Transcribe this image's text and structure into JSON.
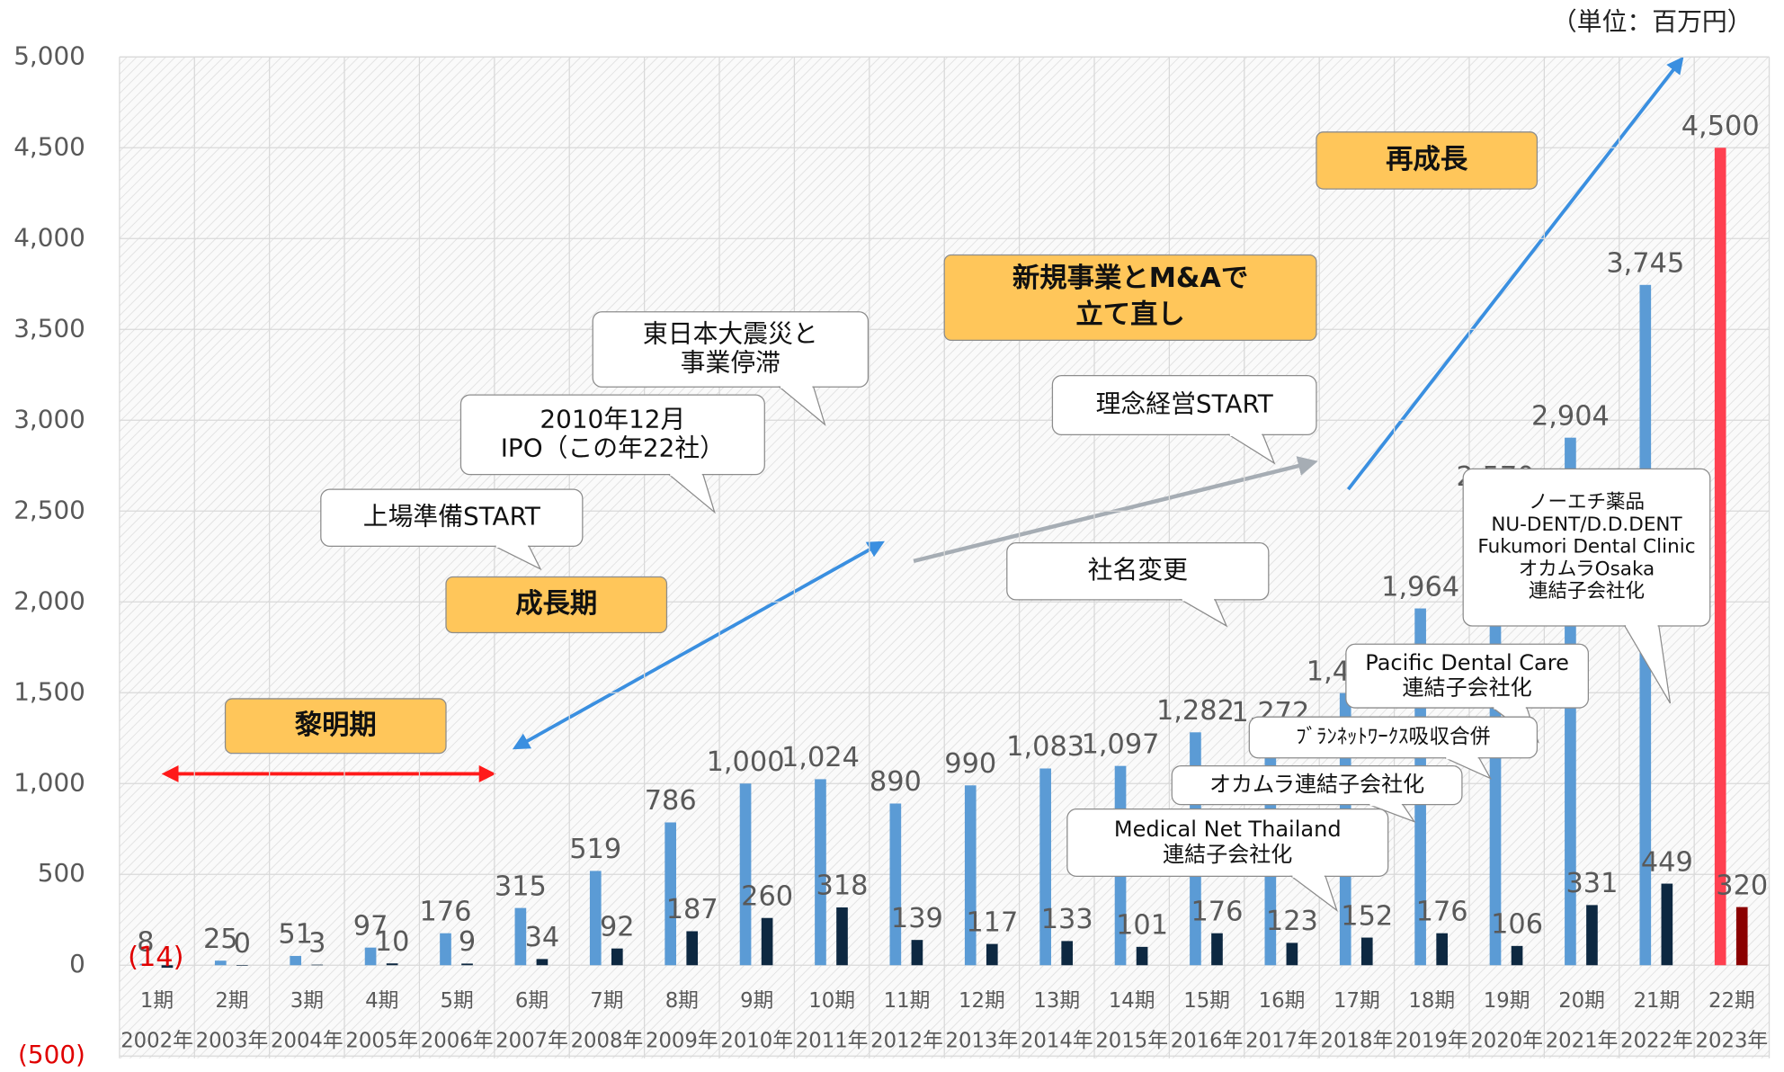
{
  "chart_data": {
    "type": "bar",
    "unit_label": "（単位：百万円）",
    "categories": [
      "1期",
      "2期",
      "3期",
      "4期",
      "5期",
      "6期",
      "7期",
      "8期",
      "9期",
      "10期",
      "11期",
      "12期",
      "13期",
      "14期",
      "15期",
      "16期",
      "17期",
      "18期",
      "19期",
      "20期",
      "21期",
      "22期"
    ],
    "years": [
      "2002年",
      "2003年",
      "2004年",
      "2005年",
      "2006年",
      "2007年",
      "2008年",
      "2009年",
      "2010年",
      "2011年",
      "2012年",
      "2013年",
      "2014年",
      "2015年",
      "2016年",
      "2017年",
      "2018年",
      "2019年",
      "2020年",
      "2021年",
      "2022年",
      "2023年"
    ],
    "series": [
      {
        "values": [
          8,
          25,
          51,
          97,
          176,
          315,
          519,
          786,
          1000,
          1024,
          890,
          990,
          1083,
          1097,
          1282,
          1272,
          1498,
          1964,
          2570,
          2904,
          3745,
          4500
        ],
        "value_labels": [
          "8",
          "25",
          "51",
          "97",
          "176",
          "315",
          "519",
          "786",
          "1,000",
          "1,024",
          "890",
          "990",
          "1,083",
          "1,097",
          "1,282",
          "1,272",
          "1,498",
          "1,964",
          "2,570",
          "2,904",
          "3,745",
          "4,500"
        ],
        "colors": [
          "#5b9bd5",
          "#5b9bd5",
          "#5b9bd5",
          "#5b9bd5",
          "#5b9bd5",
          "#5b9bd5",
          "#5b9bd5",
          "#5b9bd5",
          "#5b9bd5",
          "#5b9bd5",
          "#5b9bd5",
          "#5b9bd5",
          "#5b9bd5",
          "#5b9bd5",
          "#5b9bd5",
          "#5b9bd5",
          "#5b9bd5",
          "#5b9bd5",
          "#5b9bd5",
          "#5b9bd5",
          "#5b9bd5",
          "#ff4050"
        ]
      },
      {
        "values": [
          -14,
          0,
          3,
          10,
          9,
          34,
          92,
          187,
          260,
          318,
          139,
          117,
          133,
          101,
          176,
          123,
          152,
          176,
          106,
          331,
          449,
          320
        ],
        "value_labels": [
          "(14)",
          "0",
          "3",
          "10",
          "9",
          "34",
          "92",
          "187",
          "260",
          "318",
          "139",
          "117",
          "133",
          "101",
          "176",
          "123",
          "152",
          "176",
          "106",
          "331",
          "449",
          "320"
        ],
        "colors": [
          "#0d2841",
          "#0d2841",
          "#0d2841",
          "#0d2841",
          "#0d2841",
          "#0d2841",
          "#0d2841",
          "#0d2841",
          "#0d2841",
          "#0d2841",
          "#0d2841",
          "#0d2841",
          "#0d2841",
          "#0d2841",
          "#0d2841",
          "#0d2841",
          "#0d2841",
          "#0d2841",
          "#0d2841",
          "#0d2841",
          "#0d2841",
          "#8b0000"
        ]
      }
    ],
    "ylim": [
      -500,
      5000
    ],
    "yticks": [
      {
        "value": -500,
        "label": "(500)"
      },
      0,
      500,
      {
        "value": 1000,
        "label": "1,000"
      },
      {
        "value": 1500,
        "label": "1,500"
      },
      {
        "value": 2000,
        "label": "2,000"
      },
      {
        "value": 2500,
        "label": "2,500"
      },
      {
        "value": 3000,
        "label": "3,000"
      },
      {
        "value": 3500,
        "label": "3,500"
      },
      {
        "value": 4000,
        "label": "4,000"
      },
      {
        "value": 4500,
        "label": "4,500"
      },
      {
        "value": 5000,
        "label": "5,000"
      }
    ],
    "phases": [
      {
        "lines": [
          "黎明期"
        ]
      },
      {
        "lines": [
          "成長期"
        ]
      },
      {
        "lines": [
          "新規事業とM&Aで",
          "立て直し"
        ]
      },
      {
        "lines": [
          "再成長"
        ]
      }
    ],
    "callouts": [
      {
        "lines": [
          "上場準備START"
        ]
      },
      {
        "lines": [
          "2010年12月",
          "IPO（この年22社）"
        ]
      },
      {
        "lines": [
          "東日本大震災と",
          "事業停滞"
        ]
      },
      {
        "lines": [
          "理念経営START"
        ]
      },
      {
        "lines": [
          "社名変更"
        ]
      },
      {
        "lines": [
          "ノーエチ薬品",
          "NU-DENT/D.D.DENT",
          "Fukumori Dental Clinic",
          "オカムラOsaka",
          "連結子会社化"
        ]
      },
      {
        "lines": [
          "Pacific Dental Care",
          "連結子会社化"
        ]
      },
      {
        "lines": [
          "ﾌﾞﾗﾝﾈｯﾄﾜｰｸｽ吸収合併"
        ]
      },
      {
        "lines": [
          "オカムラ連結子会社化"
        ]
      },
      {
        "lines": [
          "Medical Net Thailand",
          "連結子会社化"
        ]
      }
    ]
  }
}
